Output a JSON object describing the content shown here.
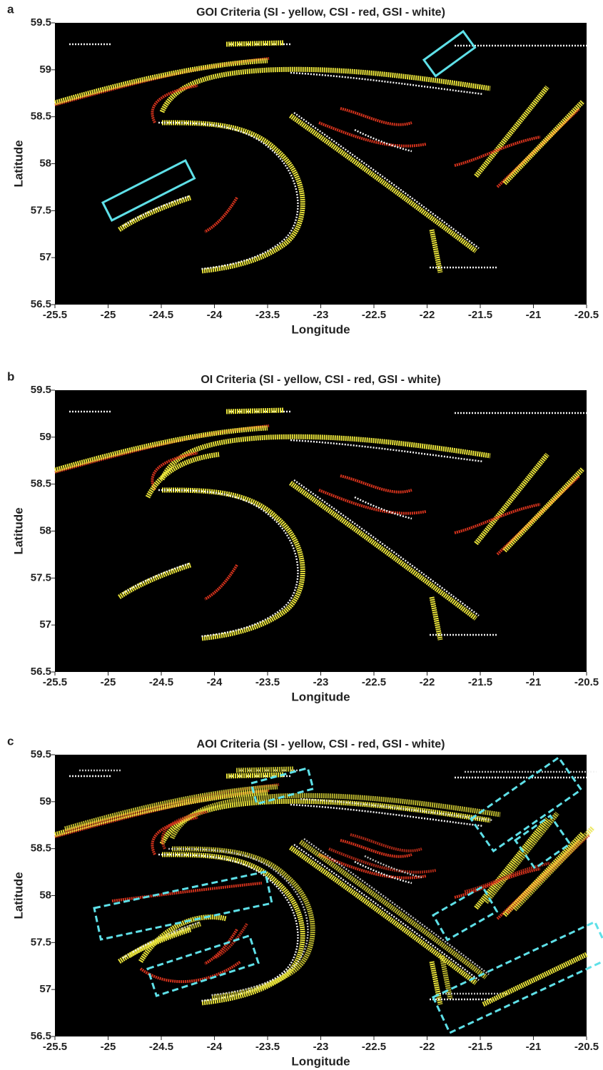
{
  "chart_data": [
    {
      "type": "scatter",
      "panel_label": "a",
      "title": "GOI Criteria (SI - yellow, CSI - red, GSI - white)",
      "x_label": "Longitude",
      "y_label": "Latitude",
      "xlim": [
        -25.5,
        -20.5
      ],
      "xticks": [
        -25.5,
        -25,
        -24.5,
        -24,
        -23.5,
        -23,
        -22.5,
        -22,
        -21.5,
        -21,
        -20.5
      ],
      "ylim": [
        56.5,
        59.5
      ],
      "yticks": [
        56.5,
        57,
        57.5,
        58,
        58.5,
        59,
        59.5
      ]
    },
    {
      "type": "scatter",
      "panel_label": "b",
      "title": "OI Criteria (SI - yellow, CSI - red, GSI - white)",
      "x_label": "Longitude",
      "y_label": "Latitude",
      "xlim": [
        -25.5,
        -20.5
      ],
      "xticks": [
        -25.5,
        -25,
        -24.5,
        -24,
        -23.5,
        -23,
        -22.5,
        -22,
        -21.5,
        -21,
        -20.5
      ],
      "ylim": [
        56.5,
        59.5
      ],
      "yticks": [
        56.5,
        57,
        57.5,
        58,
        58.5,
        59,
        59.5
      ]
    },
    {
      "type": "scatter",
      "panel_label": "c",
      "title": "AOI Criteria (SI - yellow, CSI - red, GSI - white)",
      "x_label": "Longitude",
      "y_label": "Latitude",
      "xlim": [
        -25.5,
        -20.5
      ],
      "xticks": [
        -25.5,
        -25,
        -24.5,
        -24,
        -23.5,
        -23,
        -22.5,
        -22,
        -21.5,
        -21,
        -20.5
      ],
      "ylim": [
        56.5,
        59.5
      ],
      "yticks": [
        56.5,
        57,
        57.5,
        58,
        58.5,
        59,
        59.5
      ]
    }
  ]
}
